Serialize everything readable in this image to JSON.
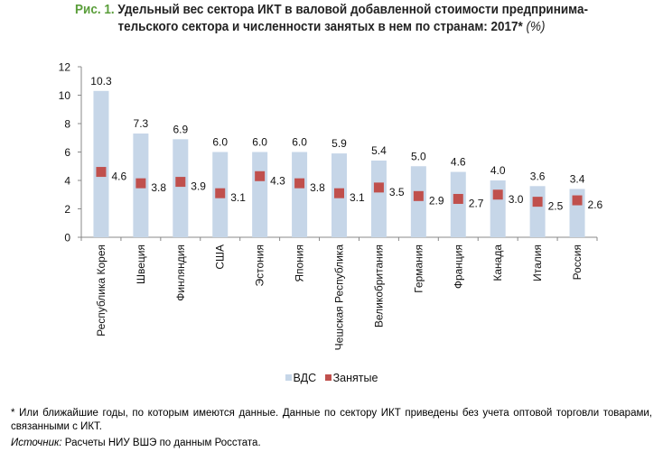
{
  "title": {
    "figure_label": "Рис. 1.",
    "line1": "Удельный вес сектора ИКТ в валовой добавленной стоимости предпринима-",
    "line2": "тельского сектора и численности занятых в нем по странам: 2017*",
    "unit": "(%)"
  },
  "chart_data": {
    "type": "bar",
    "title": "Удельный вес сектора ИКТ в валовой добавленной стоимости предпринимательского сектора и численности занятых в нем по странам: 2017* (%)",
    "xlabel": "",
    "ylabel": "",
    "ylim": [
      0,
      12
    ],
    "yticks": [
      "0",
      "2",
      "4",
      "6",
      "8",
      "10",
      "12"
    ],
    "grid": false,
    "legend_position": "bottom",
    "categories": [
      "Республика Корея",
      "Швеция",
      "Финляндия",
      "США",
      "Эстония",
      "Япония",
      "Чешская Республика",
      "Великобритания",
      "Германия",
      "Франция",
      "Канада",
      "Италия",
      "Россия"
    ],
    "series": [
      {
        "name": "ВДС",
        "type": "bar",
        "color": "#c6d6e8",
        "values": [
          10.3,
          7.3,
          6.9,
          6.0,
          6.0,
          6.0,
          5.9,
          5.4,
          5.0,
          4.6,
          4.0,
          3.6,
          3.4
        ],
        "labels": [
          "10.3",
          "7.3",
          "6.9",
          "6.0",
          "6.0",
          "6.0",
          "5.9",
          "5.4",
          "5.0",
          "4.6",
          "4.0",
          "3.6",
          "3.4"
        ]
      },
      {
        "name": "Занятые",
        "type": "marker-square",
        "color": "#c0504d",
        "values": [
          4.6,
          3.8,
          3.9,
          3.1,
          4.3,
          3.8,
          3.1,
          3.5,
          2.9,
          2.7,
          3.0,
          2.5,
          2.6
        ],
        "labels": [
          "4.6",
          "3.8",
          "3.9",
          "3.1",
          "4.3",
          "3.8",
          "3.1",
          "3.5",
          "2.9",
          "2.7",
          "3.0",
          "2.5",
          "2.6"
        ]
      }
    ]
  },
  "legend": {
    "items": [
      {
        "label": "ВДС",
        "color": "#c6d6e8"
      },
      {
        "label": "Занятые",
        "color": "#c0504d"
      }
    ]
  },
  "footnote": "* Или ближайшие годы, по которым имеются данные. Данные по сектору ИКТ приведены без учета оптовой торговли товарами, связанными с ИКТ.",
  "source": {
    "label": "Источник:",
    "text": " Расчеты НИУ ВШЭ по данным Росстата."
  }
}
